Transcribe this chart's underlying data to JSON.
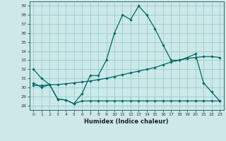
{
  "xlabel": "Humidex (Indice chaleur)",
  "background_color": "#cce8e8",
  "grid_color": "#99cccc",
  "line_color": "#006666",
  "xlim": [
    -0.5,
    23.5
  ],
  "ylim": [
    27.5,
    39.5
  ],
  "yticks": [
    28,
    29,
    30,
    31,
    32,
    33,
    34,
    35,
    36,
    37,
    38,
    39
  ],
  "xticks": [
    0,
    1,
    2,
    3,
    4,
    5,
    6,
    7,
    8,
    9,
    10,
    11,
    12,
    13,
    14,
    15,
    16,
    17,
    18,
    19,
    20,
    21,
    22,
    23
  ],
  "line1_x": [
    0,
    1,
    2,
    3,
    4,
    5,
    6,
    7,
    8,
    9,
    10,
    11,
    12,
    13,
    14,
    15,
    16,
    17,
    18,
    19,
    20,
    21,
    22,
    23
  ],
  "line1_y": [
    32.0,
    31.0,
    30.3,
    28.7,
    28.6,
    28.2,
    29.3,
    31.3,
    31.3,
    33.0,
    36.0,
    38.0,
    37.5,
    39.0,
    38.0,
    36.5,
    34.7,
    33.0,
    33.0,
    33.3,
    33.7,
    30.5,
    29.5,
    28.5
  ],
  "line2_x": [
    0,
    1,
    2,
    3,
    4,
    5,
    6,
    7,
    8,
    9,
    10,
    11,
    12,
    13,
    14,
    15,
    16,
    17,
    18,
    19,
    20,
    21,
    22,
    23
  ],
  "line2_y": [
    30.5,
    30.0,
    30.3,
    28.7,
    28.6,
    28.2,
    28.5,
    28.5,
    28.5,
    28.5,
    28.5,
    28.5,
    28.5,
    28.5,
    28.5,
    28.5,
    28.5,
    28.5,
    28.5,
    28.5,
    28.5,
    28.5,
    28.5,
    28.5
  ],
  "line3_x": [
    0,
    1,
    2,
    3,
    4,
    5,
    6,
    7,
    8,
    9,
    10,
    11,
    12,
    13,
    14,
    15,
    16,
    17,
    18,
    19,
    20,
    21,
    22,
    23
  ],
  "line3_y": [
    30.2,
    30.2,
    30.3,
    30.3,
    30.4,
    30.5,
    30.6,
    30.7,
    30.85,
    31.0,
    31.2,
    31.4,
    31.6,
    31.8,
    32.0,
    32.2,
    32.5,
    32.8,
    33.0,
    33.2,
    33.3,
    33.4,
    33.4,
    33.3
  ]
}
